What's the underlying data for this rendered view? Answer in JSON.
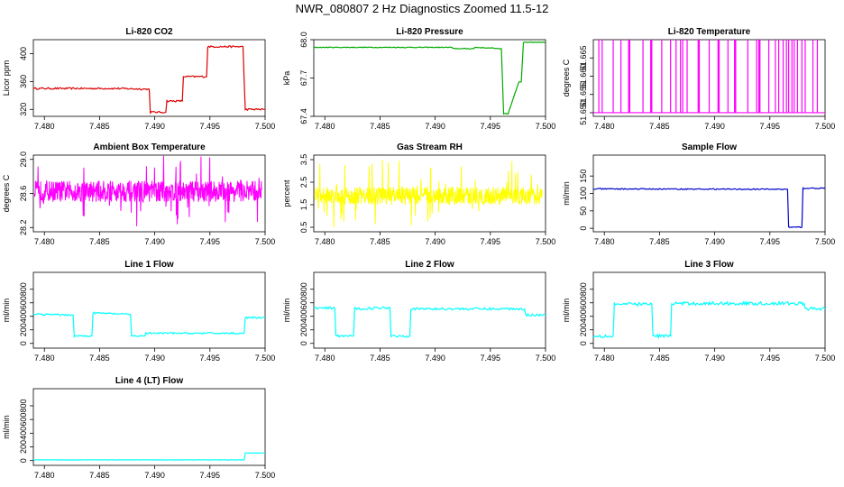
{
  "page": {
    "title": "NWR_080807  2 Hz Diagnostics Zoomed 11.5-12"
  },
  "colors": {
    "red": "#dd0000",
    "green": "#00aa00",
    "magenta": "#ff00ff",
    "yellow": "#ffff00",
    "blue": "#0000cc",
    "cyan": "#00ffff"
  },
  "chart_data": [
    {
      "id": "co2",
      "type": "line",
      "title": "Li-820 CO2",
      "xlabel": "",
      "ylabel": "Licor ppm",
      "xlim": [
        7.479,
        7.5
      ],
      "ylim": [
        310,
        420
      ],
      "xticks": [
        "7.480",
        "7.485",
        "7.490",
        "7.495",
        "7.500"
      ],
      "yticks": [
        {
          "v": 320,
          "label": "320"
        },
        {
          "v": 360,
          "label": "360"
        },
        {
          "v": 400,
          "label": "400"
        }
      ],
      "color": "red",
      "noise": 1.2,
      "x": [
        7.479,
        7.4865,
        7.4895,
        7.4896,
        7.491,
        7.4911,
        7.4925,
        7.4926,
        7.4947,
        7.4948,
        7.498,
        7.4982,
        7.5
      ],
      "y": [
        350,
        350,
        349,
        316,
        316,
        332,
        332,
        367,
        367,
        410,
        410,
        320,
        320
      ]
    },
    {
      "id": "pressure",
      "type": "line",
      "title": "Li-820 Pressure",
      "xlabel": "",
      "ylabel": "kPa",
      "xlim": [
        7.479,
        7.5
      ],
      "ylim": [
        67.4,
        68.0
      ],
      "xticks": [
        "7.480",
        "7.485",
        "7.490",
        "7.495",
        "7.500"
      ],
      "yticks": [
        {
          "v": 67.4,
          "label": "67.4"
        },
        {
          "v": 67.7,
          "label": "67.7"
        },
        {
          "v": 68.0,
          "label": "68.0"
        }
      ],
      "color": "green",
      "noise": 0.003,
      "x": [
        7.479,
        7.4915,
        7.4916,
        7.4935,
        7.4936,
        7.496,
        7.4962,
        7.4966,
        7.4975,
        7.4976,
        7.4978,
        7.498,
        7.5
      ],
      "y": [
        67.94,
        67.94,
        67.93,
        67.93,
        67.94,
        67.93,
        67.42,
        67.42,
        67.65,
        67.67,
        67.67,
        67.98,
        67.98
      ]
    },
    {
      "id": "li_temp",
      "type": "line",
      "title": "Li-820 Temperature",
      "xlabel": "",
      "ylabel": "degrees C",
      "xlim": [
        7.479,
        7.5
      ],
      "ylim": [
        51.649,
        51.67
      ],
      "xticks": [
        "7.480",
        "7.485",
        "7.490",
        "7.495",
        "7.500"
      ],
      "yticks": [
        {
          "v": 51.65,
          "label": "51.650"
        },
        {
          "v": 51.655,
          "label": "51.655"
        },
        {
          "v": 51.66,
          "label": "51.660"
        },
        {
          "v": 51.665,
          "label": "51.665"
        }
      ],
      "color": "magenta",
      "noise": 0,
      "base": 51.65,
      "spike_value": 51.67,
      "spikes": [
        7.4795,
        7.4798,
        7.4808,
        7.4815,
        7.4822,
        7.4823,
        7.4835,
        7.4842,
        7.4843,
        7.4852,
        7.486,
        7.4865,
        7.4869,
        7.4871,
        7.4875,
        7.4885,
        7.4886,
        7.4895,
        7.4903,
        7.4904,
        7.4912,
        7.4918,
        7.4919,
        7.493,
        7.4938,
        7.494,
        7.4941,
        7.4949,
        7.4955,
        7.4958,
        7.4962,
        7.4965,
        7.4967,
        7.497,
        7.4972,
        7.4975,
        7.4979,
        7.4982,
        7.4989,
        7.4993
      ]
    },
    {
      "id": "box_temp",
      "type": "line",
      "title": "Ambient Box Temperature",
      "xlabel": "",
      "ylabel": "degrees C",
      "xlim": [
        7.479,
        7.5
      ],
      "ylim": [
        28.15,
        29.05
      ],
      "xticks": [
        "7.480",
        "7.485",
        "7.490",
        "7.495",
        "7.500"
      ],
      "yticks": [
        {
          "v": 28.2,
          "label": "28.2"
        },
        {
          "v": 28.6,
          "label": "28.6"
        },
        {
          "v": 29.0,
          "label": "29.0"
        }
      ],
      "color": "magenta",
      "noise_band": [
        28.5,
        28.75
      ],
      "spike_range": [
        28.2,
        29.05
      ],
      "x": [
        7.479,
        7.5
      ],
      "y": [
        28.62,
        28.62
      ]
    },
    {
      "id": "rh",
      "type": "line",
      "title": "Gas Stream RH",
      "xlabel": "",
      "ylabel": "percent",
      "xlim": [
        7.479,
        7.5
      ],
      "ylim": [
        0.3,
        3.7
      ],
      "xticks": [
        "7.480",
        "7.485",
        "7.490",
        "7.495",
        "7.500"
      ],
      "yticks": [
        {
          "v": 0.5,
          "label": "0.5"
        },
        {
          "v": 1.5,
          "label": "1.5"
        },
        {
          "v": 2.5,
          "label": "2.5"
        },
        {
          "v": 3.5,
          "label": "3.5"
        }
      ],
      "color": "yellow",
      "noise_band": [
        1.5,
        2.3
      ],
      "spike_range": [
        0.4,
        3.5
      ],
      "x": [
        7.479,
        7.5
      ],
      "y": [
        1.9,
        1.9
      ]
    },
    {
      "id": "sample_flow",
      "type": "line",
      "title": "Sample Flow",
      "xlabel": "",
      "ylabel": "ml/min",
      "xlim": [
        7.479,
        7.5
      ],
      "ylim": [
        -10,
        210
      ],
      "xticks": [
        "7.480",
        "7.485",
        "7.490",
        "7.495",
        "7.500"
      ],
      "yticks": [
        {
          "v": 0,
          "label": "0"
        },
        {
          "v": 50,
          "label": "50"
        },
        {
          "v": 100,
          "label": "100"
        },
        {
          "v": 150,
          "label": "150"
        }
      ],
      "color": "blue",
      "noise": 1.5,
      "x": [
        7.479,
        7.4966,
        7.4967,
        7.4979,
        7.498,
        7.5
      ],
      "y": [
        113,
        112,
        3,
        3,
        115,
        115
      ]
    },
    {
      "id": "line1",
      "type": "line",
      "title": "Line 1 Flow",
      "xlabel": "",
      "ylabel": "ml/min",
      "xlim": [
        7.479,
        7.5
      ],
      "ylim": [
        -70,
        1050
      ],
      "xticks": [
        "7.480",
        "7.485",
        "7.490",
        "7.495",
        "7.500"
      ],
      "yticks": [
        {
          "v": 0,
          "label": "0"
        },
        {
          "v": 200,
          "label": "200"
        },
        {
          "v": 400,
          "label": "400"
        },
        {
          "v": 600,
          "label": "600"
        },
        {
          "v": 800,
          "label": "800"
        }
      ],
      "color": "cyan",
      "noise": 12,
      "x": [
        7.479,
        7.4826,
        7.4827,
        7.4843,
        7.4844,
        7.4878,
        7.4879,
        7.4891,
        7.4892,
        7.4981,
        7.4982,
        7.5
      ],
      "y": [
        430,
        420,
        110,
        110,
        450,
        430,
        110,
        110,
        150,
        150,
        380,
        380
      ]
    },
    {
      "id": "line2",
      "type": "line",
      "title": "Line 2 Flow",
      "xlabel": "",
      "ylabel": "ml/min",
      "xlim": [
        7.479,
        7.5
      ],
      "ylim": [
        -70,
        1050
      ],
      "xticks": [
        "7.480",
        "7.485",
        "7.490",
        "7.495",
        "7.500"
      ],
      "yticks": [
        {
          "v": 0,
          "label": "0"
        },
        {
          "v": 200,
          "label": "200"
        },
        {
          "v": 400,
          "label": "400"
        },
        {
          "v": 600,
          "label": "600"
        },
        {
          "v": 800,
          "label": "800"
        }
      ],
      "color": "cyan",
      "noise": 18,
      "x": [
        7.479,
        7.4809,
        7.481,
        7.4826,
        7.4827,
        7.4859,
        7.486,
        7.4877,
        7.4878,
        7.4981,
        7.4982,
        7.5
      ],
      "y": [
        520,
        520,
        110,
        110,
        510,
        530,
        110,
        110,
        510,
        510,
        420,
        420
      ]
    },
    {
      "id": "line3",
      "type": "line",
      "title": "Line 3 Flow",
      "xlabel": "",
      "ylabel": "ml/min",
      "xlim": [
        7.479,
        7.5
      ],
      "ylim": [
        -70,
        1050
      ],
      "xticks": [
        "7.480",
        "7.485",
        "7.490",
        "7.495",
        "7.500"
      ],
      "yticks": [
        {
          "v": 0,
          "label": "0"
        },
        {
          "v": 200,
          "label": "200"
        },
        {
          "v": 400,
          "label": "400"
        },
        {
          "v": 600,
          "label": "600"
        },
        {
          "v": 800,
          "label": "800"
        }
      ],
      "color": "cyan",
      "noise": 25,
      "x": [
        7.479,
        7.4808,
        7.4809,
        7.4843,
        7.4844,
        7.486,
        7.4861,
        7.4981,
        7.4982,
        7.5
      ],
      "y": [
        110,
        110,
        580,
        580,
        110,
        110,
        590,
        590,
        510,
        510
      ]
    },
    {
      "id": "line4",
      "type": "line",
      "title": "Line 4 (LT) Flow",
      "xlabel": "",
      "ylabel": "ml/min",
      "xlim": [
        7.479,
        7.5
      ],
      "ylim": [
        -70,
        1050
      ],
      "xticks": [
        "7.480",
        "7.485",
        "7.490",
        "7.495",
        "7.500"
      ],
      "yticks": [
        {
          "v": 0,
          "label": "0"
        },
        {
          "v": 200,
          "label": "200"
        },
        {
          "v": 400,
          "label": "400"
        },
        {
          "v": 600,
          "label": "600"
        },
        {
          "v": 800,
          "label": "800"
        }
      ],
      "color": "cyan",
      "noise": 2,
      "x": [
        7.479,
        7.4981,
        7.4982,
        7.5
      ],
      "y": [
        10,
        10,
        110,
        110
      ]
    }
  ]
}
